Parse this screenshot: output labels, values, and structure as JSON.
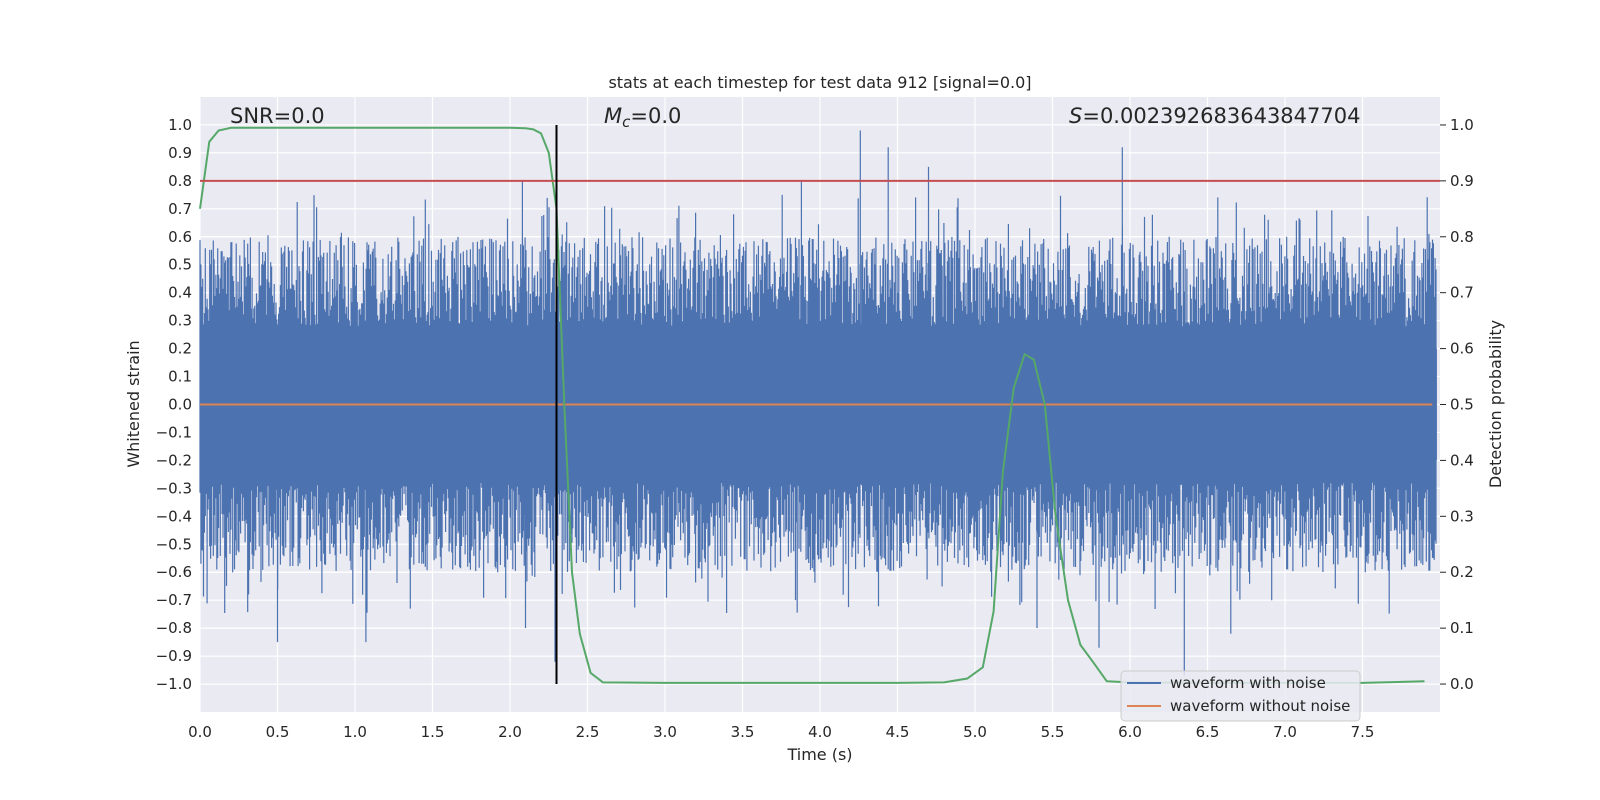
{
  "chart_data": {
    "type": "line",
    "title": "stats at each timestep for test data 912 [signal=0.0]",
    "xlabel": "Time (s)",
    "ylabel": "Whitened strain",
    "y2label": "Detection probability",
    "xlim": [
      0.0,
      8.0
    ],
    "ylim": [
      -1.1,
      1.1
    ],
    "y2lim": [
      -0.05,
      1.05
    ],
    "xticks": [
      "0.0",
      "0.5",
      "1.0",
      "1.5",
      "2.0",
      "2.5",
      "3.0",
      "3.5",
      "4.0",
      "4.5",
      "5.0",
      "5.5",
      "6.0",
      "6.5",
      "7.0",
      "7.5"
    ],
    "yticks": [
      "1.0",
      "0.9",
      "0.8",
      "0.7",
      "0.6",
      "0.5",
      "0.4",
      "0.3",
      "0.2",
      "0.1",
      "0.0",
      "−0.1",
      "−0.2",
      "−0.3",
      "−0.4",
      "−0.5",
      "−0.6",
      "−0.7",
      "−0.8",
      "−0.9",
      "−1.0"
    ],
    "y2ticks": [
      "1.0",
      "0.9",
      "0.8",
      "0.7",
      "0.6",
      "0.5",
      "0.4",
      "0.3",
      "0.2",
      "0.1",
      "0.0"
    ],
    "grid": true,
    "legend_position": "lower right",
    "annotations": {
      "snr": "SNR=0.0",
      "mc_symbol": "M",
      "mc_sub": "c",
      "mc_value": "=0.0",
      "s_symbol": "S",
      "s_value": "=0.002392683643847704"
    },
    "threshold_y2": 0.9,
    "vline_x": 2.3,
    "series": [
      {
        "name": "waveform with noise",
        "color": "#4c72b0",
        "kind": "noise",
        "core_amplitude": 0.2,
        "typical_peak_amplitude": 0.5,
        "max_up": 0.98,
        "min_down": -0.97
      },
      {
        "name": "waveform without noise",
        "color": "#dd8452",
        "x": [
          0.0,
          7.95
        ],
        "y": [
          0.0,
          0.0
        ]
      },
      {
        "color": "#55a868",
        "axis": "right",
        "x": [
          0.0,
          0.06,
          0.12,
          0.2,
          0.5,
          1.0,
          1.5,
          2.0,
          2.1,
          2.15,
          2.2,
          2.25,
          2.3,
          2.35,
          2.4,
          2.45,
          2.52,
          2.6,
          3.0,
          3.5,
          4.0,
          4.5,
          4.8,
          4.95,
          5.05,
          5.12,
          5.18,
          5.25,
          5.32,
          5.38,
          5.45,
          5.52,
          5.6,
          5.68,
          5.76,
          5.85,
          6.0,
          6.5,
          7.0,
          7.5,
          7.9
        ],
        "y": [
          0.85,
          0.97,
          0.99,
          0.995,
          0.995,
          0.995,
          0.995,
          0.995,
          0.994,
          0.992,
          0.985,
          0.95,
          0.85,
          0.5,
          0.2,
          0.09,
          0.02,
          0.003,
          0.002,
          0.002,
          0.002,
          0.002,
          0.003,
          0.01,
          0.03,
          0.13,
          0.38,
          0.53,
          0.59,
          0.58,
          0.5,
          0.3,
          0.15,
          0.07,
          0.04,
          0.005,
          0.003,
          0.002,
          0.002,
          0.002,
          0.005
        ]
      }
    ]
  }
}
